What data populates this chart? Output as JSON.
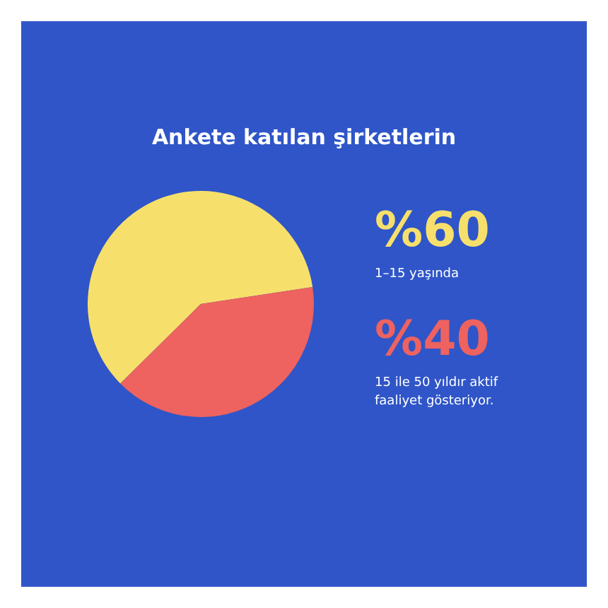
{
  "chart_data": {
    "type": "pie",
    "title": "Ankete katılan şirketlerin",
    "categories": [
      "1–15 yaşında",
      "15 ile 50 yıldır aktif faaliyet gösteriyor."
    ],
    "values": [
      60,
      40
    ],
    "colors": [
      "#f6e06b",
      "#ee625f"
    ],
    "value_labels": [
      "%60",
      "%40"
    ]
  }
}
